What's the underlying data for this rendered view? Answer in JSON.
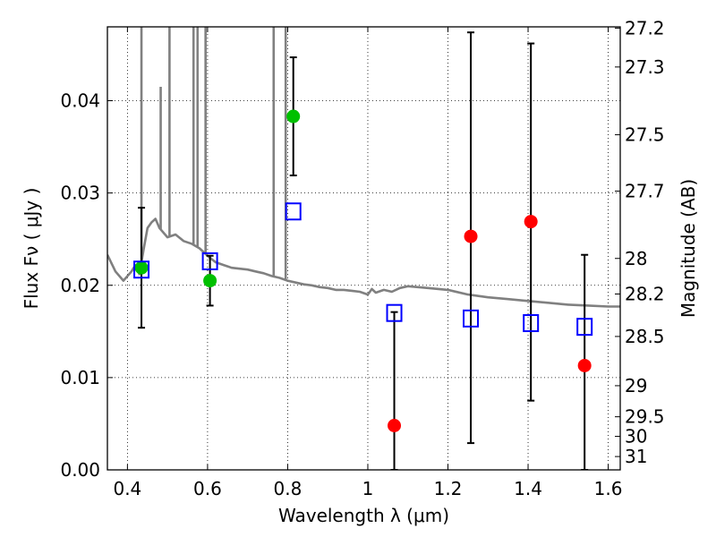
{
  "chart_data": {
    "type": "scatter",
    "title": "",
    "xlabel": "Wavelength  λ (μm)",
    "ylabel": "Flux  Fν  ( μJy )",
    "y2label": "Magnitude (AB)",
    "xlim": [
      0.35,
      1.63
    ],
    "ylim": [
      0.0,
      0.048
    ],
    "grid": true,
    "x_ticks": [
      {
        "value": 0.4,
        "label": "0.4"
      },
      {
        "value": 0.6,
        "label": "0.6"
      },
      {
        "value": 0.8,
        "label": "0.8"
      },
      {
        "value": 1.0,
        "label": "1"
      },
      {
        "value": 1.2,
        "label": "1.2"
      },
      {
        "value": 1.4,
        "label": "1.4"
      },
      {
        "value": 1.6,
        "label": "1.6"
      }
    ],
    "y_ticks": [
      {
        "value": 0.0,
        "label": "0.00"
      },
      {
        "value": 0.01,
        "label": "0.01"
      },
      {
        "value": 0.02,
        "label": "0.02"
      },
      {
        "value": 0.03,
        "label": "0.03"
      },
      {
        "value": 0.04,
        "label": "0.04"
      }
    ],
    "y2_ticks": [
      {
        "value": 27.2,
        "label": "27.2"
      },
      {
        "value": 27.3,
        "label": "27.3"
      },
      {
        "value": 27.5,
        "label": "27.5"
      },
      {
        "value": 27.7,
        "label": "27.7"
      },
      {
        "value": 28.0,
        "label": "28"
      },
      {
        "value": 28.2,
        "label": "28.2"
      },
      {
        "value": 28.5,
        "label": "28.5"
      },
      {
        "value": 29.0,
        "label": "29"
      },
      {
        "value": 29.5,
        "label": "29.5"
      },
      {
        "value": 30.0,
        "label": "30"
      },
      {
        "value": 31.0,
        "label": "31"
      }
    ],
    "colors": {
      "model": "#808080",
      "green_points": "#00c000",
      "red_points": "#ff0000",
      "model_photometry": "#0000ff",
      "errorbar": "#000000"
    },
    "model_spectrum": {
      "x": [
        0.35,
        0.37,
        0.39,
        0.41,
        0.42,
        0.43,
        0.44,
        0.45,
        0.46,
        0.47,
        0.48,
        0.5,
        0.52,
        0.54,
        0.56,
        0.58,
        0.6,
        0.62,
        0.64,
        0.66,
        0.68,
        0.7,
        0.72,
        0.74,
        0.76,
        0.78,
        0.8,
        0.82,
        0.84,
        0.86,
        0.88,
        0.9,
        0.92,
        0.94,
        0.96,
        0.98,
        1.0,
        1.01,
        1.02,
        1.04,
        1.06,
        1.08,
        1.1,
        1.15,
        1.2,
        1.25,
        1.3,
        1.35,
        1.4,
        1.45,
        1.5,
        1.55,
        1.6,
        1.63
      ],
      "y": [
        0.0233,
        0.0215,
        0.0205,
        0.0215,
        0.0222,
        0.0212,
        0.0238,
        0.0262,
        0.0268,
        0.0272,
        0.0262,
        0.0252,
        0.0255,
        0.0248,
        0.0245,
        0.024,
        0.0232,
        0.0225,
        0.0222,
        0.0219,
        0.0218,
        0.0217,
        0.0215,
        0.0213,
        0.021,
        0.0208,
        0.0205,
        0.0203,
        0.0201,
        0.02,
        0.0198,
        0.0197,
        0.0195,
        0.0195,
        0.0194,
        0.0193,
        0.019,
        0.0196,
        0.0192,
        0.0195,
        0.0193,
        0.0197,
        0.0199,
        0.0197,
        0.0195,
        0.019,
        0.0187,
        0.0185,
        0.0183,
        0.0181,
        0.0179,
        0.0178,
        0.0177,
        0.0177
      ],
      "emission_spikes": [
        {
          "x": 0.435,
          "peak": 0.048
        },
        {
          "x": 0.483,
          "peak": 0.0415
        },
        {
          "x": 0.505,
          "peak": 0.048
        },
        {
          "x": 0.565,
          "peak": 0.048
        },
        {
          "x": 0.575,
          "peak": 0.048
        },
        {
          "x": 0.595,
          "peak": 0.048
        },
        {
          "x": 0.765,
          "peak": 0.048
        },
        {
          "x": 0.795,
          "peak": 0.048
        }
      ]
    },
    "series": [
      {
        "marker": "filled-circle",
        "color": "#00c000",
        "points": [
          {
            "x": 0.435,
            "y": 0.0219,
            "yerr_low": 0.0154,
            "yerr_high": 0.0284
          },
          {
            "x": 0.606,
            "y": 0.0205,
            "yerr_low": 0.0178,
            "yerr_high": 0.0232
          },
          {
            "x": 0.814,
            "y": 0.0383,
            "yerr_low": 0.0319,
            "yerr_high": 0.0447
          }
        ]
      },
      {
        "marker": "filled-circle",
        "color": "#ff0000",
        "points": [
          {
            "x": 1.066,
            "y": 0.0048,
            "yerr_low": 0.0,
            "yerr_high": 0.0171
          },
          {
            "x": 1.257,
            "y": 0.0253,
            "yerr_low": 0.0029,
            "yerr_high": 0.0474
          },
          {
            "x": 1.407,
            "y": 0.0269,
            "yerr_low": 0.0075,
            "yerr_high": 0.0462
          },
          {
            "x": 1.541,
            "y": 0.0113,
            "yerr_low": 0.0,
            "yerr_high": 0.0233
          }
        ]
      },
      {
        "marker": "open-square",
        "color": "#0000ff",
        "points": [
          {
            "x": 0.435,
            "y": 0.0217
          },
          {
            "x": 0.606,
            "y": 0.0226
          },
          {
            "x": 0.814,
            "y": 0.028
          },
          {
            "x": 1.066,
            "y": 0.017
          },
          {
            "x": 1.257,
            "y": 0.0164
          },
          {
            "x": 1.407,
            "y": 0.0159
          },
          {
            "x": 1.541,
            "y": 0.0155
          }
        ]
      }
    ]
  }
}
